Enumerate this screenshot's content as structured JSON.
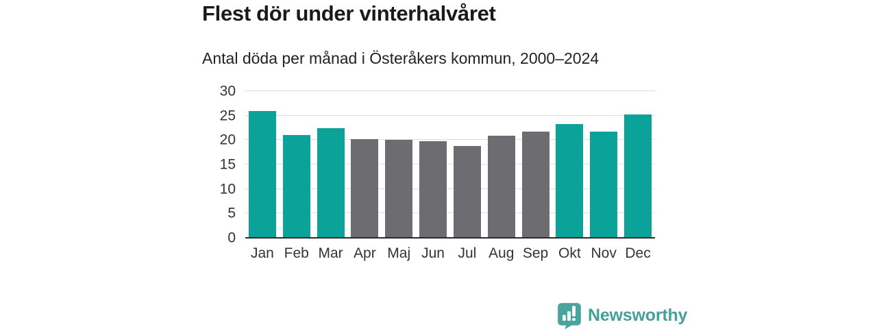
{
  "header": {
    "title": "Flest dör under vinterhalvåret",
    "subtitle": "Antal döda per månad i Österåkers kommun, 2000–2024"
  },
  "chart_data": {
    "type": "bar",
    "title": "Flest dör under vinterhalvåret",
    "subtitle": "Antal döda per månad i Österåkers kommun, 2000–2024",
    "categories": [
      "Jan",
      "Feb",
      "Mar",
      "Apr",
      "Maj",
      "Jun",
      "Jul",
      "Aug",
      "Sep",
      "Okt",
      "Nov",
      "Dec"
    ],
    "values": [
      26.0,
      21.1,
      22.5,
      20.2,
      20.1,
      19.7,
      18.8,
      20.9,
      21.7,
      23.3,
      21.8,
      25.2
    ],
    "highlighted": [
      true,
      true,
      true,
      false,
      false,
      false,
      false,
      false,
      false,
      true,
      true,
      true
    ],
    "xlabel": "",
    "ylabel": "",
    "ylim": [
      0,
      30
    ],
    "ytick_step": 5,
    "grid": "horizontal",
    "legend": "none",
    "colors": {
      "highlighted": "#0ba29a",
      "muted": "#6d6d71",
      "gridline": "#dddddd",
      "axis_line": "#2b2b2b",
      "brand": "#43a09a"
    }
  },
  "footer": {
    "brand": "Newsworthy"
  }
}
